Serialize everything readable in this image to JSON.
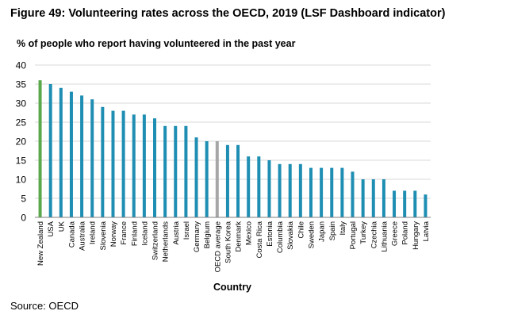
{
  "figure_title": "Figure 49: Volunteering rates across the OECD, 2019 (LSF Dashboard indicator)",
  "source": "Source: OECD",
  "colors": {
    "bar": "#1f8eb3",
    "highlight": "#5aa84a",
    "average": "#a6a6a6",
    "grid": "#d9d9d9",
    "axis": "#7f7f7f"
  },
  "chart_data": {
    "type": "bar",
    "title": "% of people who report having volunteered in the past year",
    "xlabel": "Country",
    "ylabel": "",
    "ylim": [
      0,
      40
    ],
    "yticks": [
      0,
      5,
      10,
      15,
      20,
      25,
      30,
      35,
      40
    ],
    "grid": true,
    "categories": [
      "New Zealand",
      "USA",
      "UK",
      "Canada",
      "Australia",
      "Ireland",
      "Slovenia",
      "Norway",
      "France",
      "Finland",
      "Iceland",
      "Switzerland",
      "Netherlands",
      "Austria",
      "Israel",
      "Germany",
      "Belgium",
      "OECD average",
      "South Korea",
      "Denmark",
      "Mexico",
      "Costa Rica",
      "Estonia",
      "Columbia",
      "Slovakia",
      "Chile",
      "Sweden",
      "Japan",
      "Spain",
      "Italy",
      "Portugal",
      "Turkey",
      "Czechia",
      "Lithuania",
      "Greece",
      "Poland",
      "Hungary",
      "Latvia"
    ],
    "values": [
      36,
      35,
      34,
      33,
      32,
      31,
      29,
      28,
      28,
      27,
      27,
      26,
      24,
      24,
      24,
      21,
      20,
      20,
      19,
      19,
      16,
      16,
      15,
      14,
      14,
      14,
      13,
      13,
      13,
      13,
      12,
      10,
      10,
      10,
      7,
      7,
      7,
      6
    ],
    "highlight_category": "New Zealand",
    "average_category": "OECD average"
  }
}
